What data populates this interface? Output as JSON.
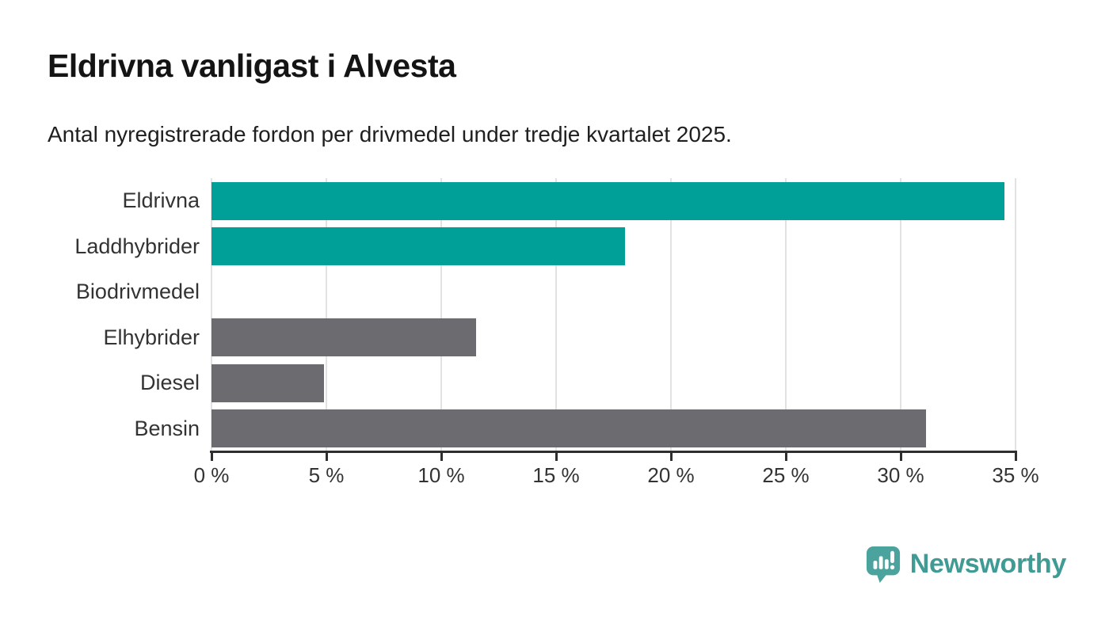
{
  "header": {
    "title": "Eldrivna vanligast i Alvesta",
    "subtitle": "Antal nyregistrerade fordon per drivmedel under tredje kvartalet 2025."
  },
  "chart_data": {
    "type": "bar",
    "orientation": "horizontal",
    "title": "Eldrivna vanligast i Alvesta",
    "subtitle": "Antal nyregistrerade fordon per drivmedel under tredje kvartalet 2025.",
    "categories": [
      "Eldrivna",
      "Laddhybrider",
      "Biodrivmedel",
      "Elhybrider",
      "Diesel",
      "Bensin"
    ],
    "values": [
      34.5,
      18,
      0,
      11.5,
      4.9,
      31.1
    ],
    "unit": "%",
    "xlim": [
      0,
      35
    ],
    "x_ticks": [
      0,
      5,
      10,
      15,
      20,
      25,
      30,
      35
    ],
    "x_tick_labels": [
      "0 %",
      "5 %",
      "10 %",
      "15 %",
      "20 %",
      "25 %",
      "30 %",
      "35 %"
    ],
    "grid": true,
    "legend": "none",
    "bar_colors": [
      "#00a099",
      "#00a099",
      "#6c6c70",
      "#6c6c70",
      "#6c6c70",
      "#6c6c70"
    ],
    "highlight_color": "#00a099",
    "default_color": "#6c6c70",
    "gridline_color": "#e2e2e2",
    "axis_color": "#2e2e2e",
    "label_color": "#333333"
  },
  "footer": {
    "brand": "Newsworthy",
    "brand_color": "#3f9b94",
    "icon_color": "#4aa39c",
    "icon": "newsworthy-speech-bubble-chart-icon"
  }
}
